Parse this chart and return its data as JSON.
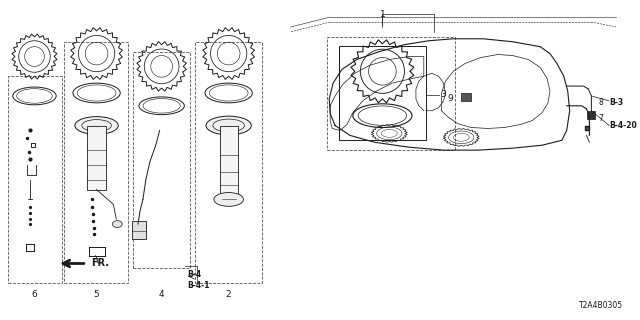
{
  "bg_color": "#ffffff",
  "line_color": "#1a1a1a",
  "diagram_code": "T2A4B0305",
  "fig_width": 6.4,
  "fig_height": 3.2,
  "dpi": 100
}
